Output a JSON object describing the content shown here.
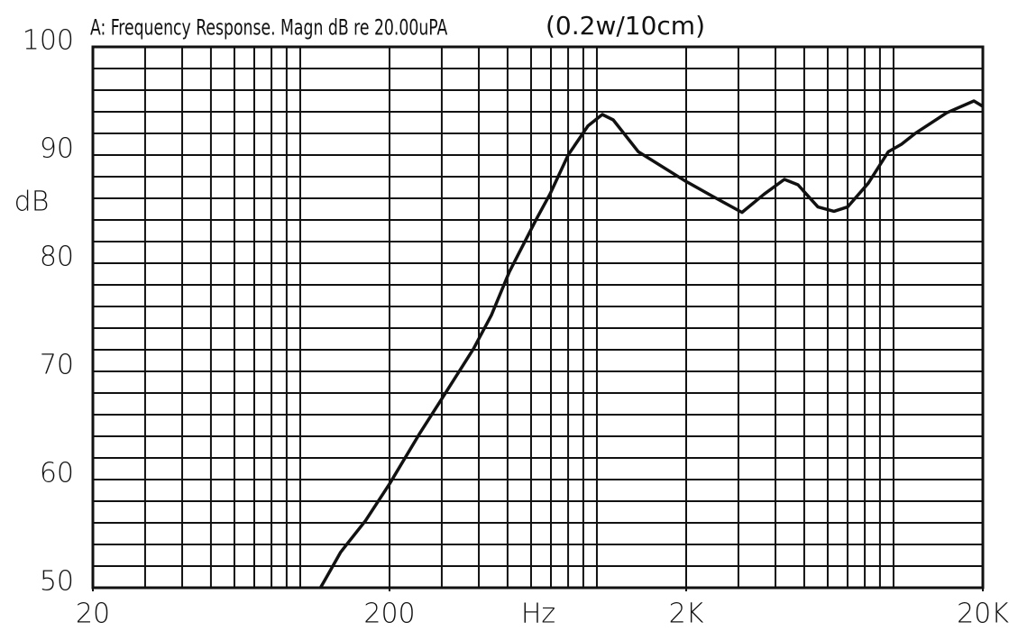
{
  "chart_data": {
    "type": "line",
    "title": "A: Frequency Response. Magn dB re 20.00uPA",
    "subtitle": "(0.2w/10cm)",
    "x_label": "Hz",
    "y_label": "dB",
    "xscale": "log",
    "xlim": [
      20,
      20000
    ],
    "ylim": [
      50,
      100
    ],
    "xticks": [
      20,
      200,
      {
        "value": 2000,
        "label": "2K"
      },
      {
        "value": 20000,
        "label": "20K"
      }
    ],
    "yticks": [
      50,
      60,
      70,
      80,
      90,
      100
    ],
    "xgrid": [
      30,
      40,
      50,
      60,
      70,
      80,
      90,
      100,
      200,
      300,
      400,
      500,
      600,
      700,
      800,
      900,
      1000,
      2000,
      3000,
      4000,
      5000,
      6000,
      7000,
      8000,
      9000,
      10000
    ],
    "ygrid": [
      52,
      54,
      56,
      58,
      60,
      62,
      64,
      66,
      68,
      70,
      72,
      74,
      76,
      78,
      80,
      82,
      84,
      86,
      88,
      90,
      92,
      94,
      96,
      98
    ],
    "grid": true,
    "series": [
      {
        "color": "#111111",
        "x": [
          117,
          120.5,
          137,
          166,
          200,
          252,
          304,
          384,
          441,
          507,
          626,
          695,
          800,
          933,
          1043,
          1135,
          1380,
          1986,
          2450,
          3085,
          3670,
          4285,
          4765,
          5560,
          6300,
          7000,
          8220,
          9600,
          10640,
          11830,
          15100,
          18660,
          20000
        ],
        "values": [
          50,
          50.6,
          53.3,
          56.2,
          59.6,
          64.2,
          67.7,
          72.1,
          75.2,
          79.2,
          84.1,
          86.4,
          90,
          92.7,
          93.75,
          93.25,
          90.3,
          87.6,
          86.2,
          84.7,
          86.4,
          87.75,
          87.25,
          85.2,
          84.8,
          85.2,
          87.4,
          90.3,
          91,
          92,
          93.9,
          95,
          94.5
        ]
      }
    ]
  }
}
